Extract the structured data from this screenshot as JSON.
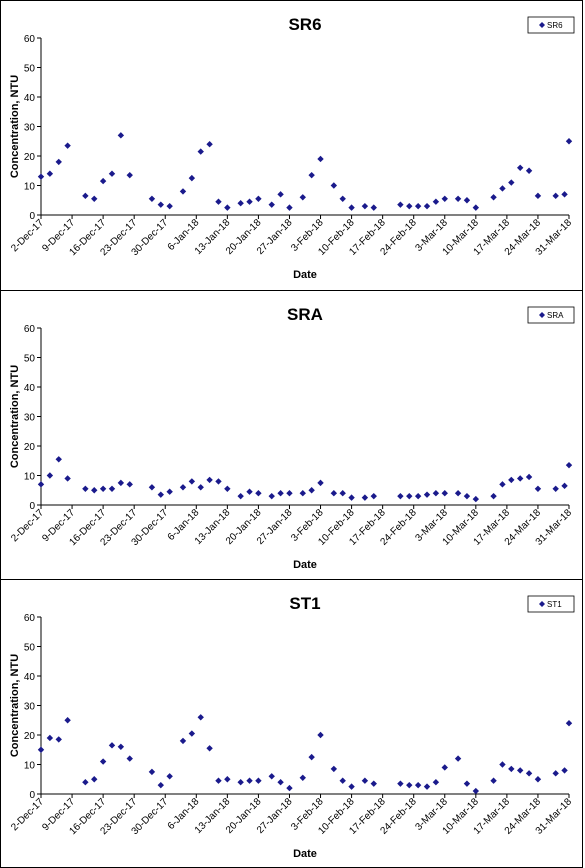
{
  "chart_data": [
    {
      "type": "scatter",
      "title": "SR6",
      "xlabel": "Date",
      "ylabel": "Concentration, NTU",
      "ylim": [
        0,
        60
      ],
      "yticks": [
        "0",
        "10",
        "20",
        "30",
        "40",
        "50",
        "60"
      ],
      "xticks": [
        "2-Dec-17",
        "9-Dec-17",
        "16-Dec-17",
        "23-Dec-17",
        "30-Dec-17",
        "6-Jan-18",
        "13-Jan-18",
        "20-Jan-18",
        "27-Jan-18",
        "3-Feb-18",
        "10-Feb-18",
        "17-Feb-18",
        "24-Feb-18",
        "3-Mar-18",
        "10-Mar-18",
        "17-Mar-18",
        "24-Mar-18",
        "31-Mar-18"
      ],
      "xlim": [
        "2017-12-02",
        "2018-03-31"
      ],
      "grid": false,
      "legend_position": "top-right",
      "marker": "diamond",
      "color": "#1A1A8C",
      "series": [
        {
          "name": "SR6",
          "x": [
            "2017-12-02",
            "2017-12-04",
            "2017-12-06",
            "2017-12-08",
            "2017-12-12",
            "2017-12-14",
            "2017-12-16",
            "2017-12-18",
            "2017-12-20",
            "2017-12-22",
            "2017-12-27",
            "2017-12-29",
            "2017-12-31",
            "2018-01-03",
            "2018-01-05",
            "2018-01-07",
            "2018-01-09",
            "2018-01-11",
            "2018-01-13",
            "2018-01-16",
            "2018-01-18",
            "2018-01-20",
            "2018-01-23",
            "2018-01-25",
            "2018-01-27",
            "2018-01-30",
            "2018-02-01",
            "2018-02-03",
            "2018-02-06",
            "2018-02-08",
            "2018-02-10",
            "2018-02-13",
            "2018-02-15",
            "2018-02-21",
            "2018-02-23",
            "2018-02-25",
            "2018-02-27",
            "2018-03-01",
            "2018-03-03",
            "2018-03-06",
            "2018-03-08",
            "2018-03-10",
            "2018-03-14",
            "2018-03-16",
            "2018-03-18",
            "2018-03-20",
            "2018-03-22",
            "2018-03-24",
            "2018-03-28",
            "2018-03-30",
            "2018-03-31"
          ],
          "values": [
            13,
            14,
            18,
            23.5,
            6.5,
            5.5,
            11.5,
            14,
            27,
            13.5,
            5.5,
            3.5,
            3,
            8,
            12.5,
            21.5,
            24,
            4.5,
            2.5,
            4,
            4.5,
            5.5,
            3.5,
            7,
            2.5,
            6,
            13.5,
            19,
            10,
            5.5,
            2.5,
            3,
            2.5,
            3.5,
            3,
            3,
            3,
            4.5,
            5.5,
            5.5,
            5,
            2.5,
            6,
            9,
            11,
            16,
            15,
            6.5,
            6.5,
            7,
            25
          ]
        }
      ]
    },
    {
      "type": "scatter",
      "title": "SRA",
      "xlabel": "Date",
      "ylabel": "Concentration, NTU",
      "ylim": [
        0,
        60
      ],
      "yticks": [
        "0",
        "10",
        "20",
        "30",
        "40",
        "50",
        "60"
      ],
      "xticks": [
        "2-Dec-17",
        "9-Dec-17",
        "16-Dec-17",
        "23-Dec-17",
        "30-Dec-17",
        "6-Jan-18",
        "13-Jan-18",
        "20-Jan-18",
        "27-Jan-18",
        "3-Feb-18",
        "10-Feb-18",
        "17-Feb-18",
        "24-Feb-18",
        "3-Mar-18",
        "10-Mar-18",
        "17-Mar-18",
        "24-Mar-18",
        "31-Mar-18"
      ],
      "xlim": [
        "2017-12-02",
        "2018-03-31"
      ],
      "grid": false,
      "legend_position": "top-right",
      "marker": "diamond",
      "color": "#1A1A8C",
      "series": [
        {
          "name": "SRA",
          "x": [
            "2017-12-02",
            "2017-12-04",
            "2017-12-06",
            "2017-12-08",
            "2017-12-12",
            "2017-12-14",
            "2017-12-16",
            "2017-12-18",
            "2017-12-20",
            "2017-12-22",
            "2017-12-27",
            "2017-12-29",
            "2017-12-31",
            "2018-01-03",
            "2018-01-05",
            "2018-01-07",
            "2018-01-09",
            "2018-01-11",
            "2018-01-13",
            "2018-01-16",
            "2018-01-18",
            "2018-01-20",
            "2018-01-23",
            "2018-01-25",
            "2018-01-27",
            "2018-01-30",
            "2018-02-01",
            "2018-02-03",
            "2018-02-06",
            "2018-02-08",
            "2018-02-10",
            "2018-02-13",
            "2018-02-15",
            "2018-02-21",
            "2018-02-23",
            "2018-02-25",
            "2018-02-27",
            "2018-03-01",
            "2018-03-03",
            "2018-03-06",
            "2018-03-08",
            "2018-03-10",
            "2018-03-14",
            "2018-03-16",
            "2018-03-18",
            "2018-03-20",
            "2018-03-22",
            "2018-03-24",
            "2018-03-28",
            "2018-03-30",
            "2018-03-31"
          ],
          "values": [
            7,
            10,
            15.5,
            9,
            5.5,
            5,
            5.5,
            5.5,
            7.5,
            7,
            6,
            3.5,
            4.5,
            6,
            8,
            6,
            8.5,
            8,
            5.5,
            3,
            4.5,
            4,
            3,
            4,
            4,
            4,
            5,
            7.5,
            4,
            4,
            2.5,
            2.5,
            3,
            3,
            3,
            3,
            3.5,
            4,
            4,
            4,
            3,
            2,
            3,
            7,
            8.5,
            9,
            9.5,
            5.5,
            5.5,
            6.5,
            13.5
          ]
        }
      ]
    },
    {
      "type": "scatter",
      "title": "ST1",
      "xlabel": "Date",
      "ylabel": "Concentration, NTU",
      "ylim": [
        0,
        60
      ],
      "yticks": [
        "0",
        "10",
        "20",
        "30",
        "40",
        "50",
        "60"
      ],
      "xticks": [
        "2-Dec-17",
        "9-Dec-17",
        "16-Dec-17",
        "23-Dec-17",
        "30-Dec-17",
        "6-Jan-18",
        "13-Jan-18",
        "20-Jan-18",
        "27-Jan-18",
        "3-Feb-18",
        "10-Feb-18",
        "17-Feb-18",
        "24-Feb-18",
        "3-Mar-18",
        "10-Mar-18",
        "17-Mar-18",
        "24-Mar-18",
        "31-Mar-18"
      ],
      "xlim": [
        "2017-12-02",
        "2018-03-31"
      ],
      "grid": false,
      "legend_position": "top-right",
      "marker": "diamond",
      "color": "#1A1A8C",
      "series": [
        {
          "name": "ST1",
          "x": [
            "2017-12-02",
            "2017-12-04",
            "2017-12-06",
            "2017-12-08",
            "2017-12-12",
            "2017-12-14",
            "2017-12-16",
            "2017-12-18",
            "2017-12-20",
            "2017-12-22",
            "2017-12-27",
            "2017-12-29",
            "2017-12-31",
            "2018-01-03",
            "2018-01-05",
            "2018-01-07",
            "2018-01-09",
            "2018-01-11",
            "2018-01-13",
            "2018-01-16",
            "2018-01-18",
            "2018-01-20",
            "2018-01-23",
            "2018-01-25",
            "2018-01-27",
            "2018-01-30",
            "2018-02-01",
            "2018-02-03",
            "2018-02-06",
            "2018-02-08",
            "2018-02-10",
            "2018-02-13",
            "2018-02-15",
            "2018-02-21",
            "2018-02-23",
            "2018-02-25",
            "2018-02-27",
            "2018-03-01",
            "2018-03-03",
            "2018-03-06",
            "2018-03-08",
            "2018-03-10",
            "2018-03-14",
            "2018-03-16",
            "2018-03-18",
            "2018-03-20",
            "2018-03-22",
            "2018-03-24",
            "2018-03-28",
            "2018-03-30",
            "2018-03-31"
          ],
          "values": [
            15,
            19,
            18.5,
            25,
            4,
            5,
            11,
            16.5,
            16,
            12,
            7.5,
            3,
            6,
            18,
            20.5,
            26,
            15.5,
            4.5,
            5,
            4,
            4.5,
            4.5,
            6,
            4,
            2,
            5.5,
            12.5,
            20,
            8.5,
            4.5,
            2.5,
            4.5,
            3.5,
            3.5,
            3,
            3,
            2.5,
            4,
            9,
            12,
            3.5,
            1,
            4.5,
            10,
            8.5,
            8,
            7,
            5,
            7,
            8,
            24
          ]
        }
      ]
    }
  ]
}
